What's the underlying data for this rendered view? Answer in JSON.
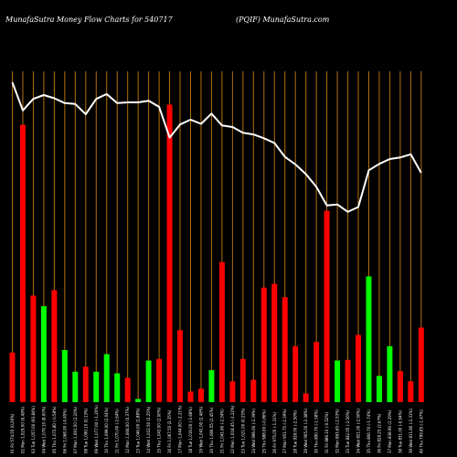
{
  "header": {
    "left": "MunafaSutra  Money Flow  Charts for 540717",
    "right": "(PQIF) MunafaSutra.com"
  },
  "colors": {
    "background": "#000000",
    "grid": "#b3700f",
    "up": "#00ff00",
    "down": "#ff0000",
    "line": "#ffffff",
    "label": "#ffffff"
  },
  "chart_data": {
    "type": "bar",
    "grid": "vertical",
    "categories": [
      "01 Fri 574.55 (0.26%)",
      "02 Mon 1,029.00 (6.49%)",
      "03 Tue 1,057.00 (93.84%)",
      "04 Wed 1,079.10 (8.00%)",
      "05 Thu 1,072.80 (-0.58%)",
      "06 Fri 1,068.00 (-0.45%)",
      "07 Mon 1,091.50 (2.20%)",
      "08 Tue 1,090.10 (0.13%)",
      "09 Wed 1,077.00 (-1.20%)",
      "10 Thu 1,099.00 (2.04%)",
      "11 Fri 1,070.00 (-2.64%)",
      "12 Mon 1,066.00 (0.37%)",
      "13 Tue 1,046.00 (1.88%)",
      "14 Wed 1,022.50 (2.25%)",
      "15 Thu 1,043.00 (2.00%)",
      "16 Fri 1,067.55 (2.35%)",
      "17 Mon 1,044.00 (-2.21%)",
      "18 Tue 1,016.00 (-2.68%)",
      "19 Wed 1,041.00 (2.46%)",
      "20 Thu 1,066.55 (2.45%)",
      "21 Fri 1,041.60 (-2.34%)",
      "22 Mon 1,018.45 (-2.22%)",
      "23 Tue 1,021.00 (0.25%)",
      "24 Wed 996.60 (-2.39%)",
      "25 Thu 988.00 (-0.86%)",
      "26 Fri 975.05 (-1.31%)",
      "27 Mon 951.75 (-2.39%)",
      "28 Tue 928.00 (-2.50%)",
      "29 Wed 905.00 (-2.48%)",
      "30 Thu 890.70 (-1.58%)",
      "31 Fri 886.10 (-0.52%)",
      "32 Mon 863.65 (-2.53%)",
      "33 Tue 842.05 (-2.50%)",
      "34 Wed 821.00 (-2.50%)",
      "35 Thu 806.70 (-1.74%)",
      "36 Fri 828.25 (2.67%)",
      "37 Mon 838.90 (1.29%)",
      "38 Tue 831.00 (-0.94%)",
      "39 Wed 811.80 (-2.31%)",
      "40 Thu 799.85 (-1.47%)"
    ],
    "series": [
      {
        "type": "bar",
        "values": [
          0.155,
          0.867,
          0.333,
          0.3,
          0.35,
          0.163,
          0.095,
          0.111,
          0.095,
          0.15,
          0.09,
          0.076,
          0.01,
          0.13,
          0.135,
          0.93,
          0.225,
          0.033,
          0.042,
          0.1,
          0.438,
          0.065,
          0.135,
          0.07,
          0.358,
          0.37,
          0.328,
          0.175,
          0.027,
          0.188,
          0.598,
          0.13,
          0.132,
          0.21,
          0.393,
          0.082,
          0.175,
          0.097,
          0.065,
          0.233
        ],
        "colors": [
          "down",
          "down",
          "down",
          "up",
          "down",
          "up",
          "up",
          "down",
          "up",
          "up",
          "up",
          "down",
          "up",
          "up",
          "down",
          "down",
          "down",
          "down",
          "down",
          "up",
          "down",
          "down",
          "down",
          "down",
          "down",
          "down",
          "down",
          "down",
          "down",
          "down",
          "down",
          "up",
          "down",
          "down",
          "up",
          "up",
          "up",
          "down",
          "down",
          "down"
        ]
      },
      {
        "type": "line",
        "values": [
          1.0,
          0.912,
          0.948,
          0.96,
          0.95,
          0.935,
          0.932,
          0.9,
          0.948,
          0.963,
          0.935,
          0.937,
          0.937,
          0.942,
          0.923,
          0.827,
          0.868,
          0.883,
          0.87,
          0.902,
          0.865,
          0.86,
          0.842,
          0.837,
          0.825,
          0.81,
          0.767,
          0.743,
          0.713,
          0.673,
          0.615,
          0.618,
          0.595,
          0.61,
          0.725,
          0.745,
          0.76,
          0.765,
          0.775,
          0.717
        ]
      }
    ],
    "ylim": [
      0,
      1
    ]
  }
}
